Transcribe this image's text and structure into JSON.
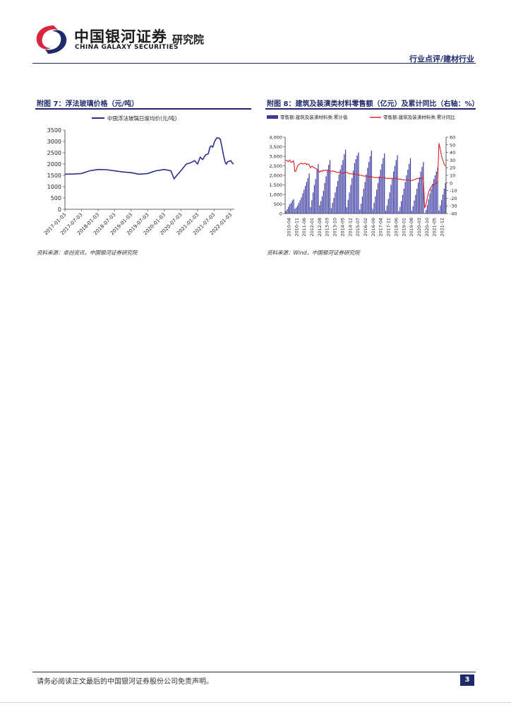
{
  "header": {
    "brand_cn": "中国银河证券",
    "brand_sub": "研究院",
    "brand_en": "CHINA GALAXY SECURITIES",
    "category": "行业点评/建材行业",
    "logo_colors": {
      "red": "#d7263d",
      "navy": "#1f2a6b"
    }
  },
  "figures": [
    {
      "title": "附图 7：浮法玻璃价格（元/吨）",
      "source": "资料来源：卓创资讯，中国银河证券研究院",
      "chart_data": {
        "type": "line",
        "series": [
          {
            "name": "中国浮法玻璃日度均价(元/吨)",
            "color": "#2e2e8f",
            "x": [
              "2017-01-03",
              "2017-04-01",
              "2017-07-03",
              "2017-10-01",
              "2018-01-03",
              "2018-04-01",
              "2018-07-03",
              "2018-10-01",
              "2019-01-03",
              "2019-04-01",
              "2019-07-03",
              "2019-10-01",
              "2020-01-03",
              "2020-03-15",
              "2020-04-20",
              "2020-05-20",
              "2020-07-03",
              "2020-09-01",
              "2020-10-15",
              "2020-12-01",
              "2021-01-03",
              "2021-02-01",
              "2021-03-01",
              "2021-04-01",
              "2021-05-01",
              "2021-05-20",
              "2021-06-01",
              "2021-06-20",
              "2021-07-10",
              "2021-08-01",
              "2021-08-20",
              "2021-09-10",
              "2021-10-01",
              "2021-10-15",
              "2021-11-01",
              "2021-11-15",
              "2021-12-01",
              "2022-01-03",
              "2022-01-20",
              "2022-02-05"
            ],
            "values": [
              1550,
              1560,
              1580,
              1700,
              1760,
              1750,
              1700,
              1650,
              1620,
              1550,
              1580,
              1700,
              1760,
              1700,
              1350,
              1500,
              1700,
              2000,
              2050,
              2150,
              2000,
              2300,
              2200,
              2400,
              2450,
              2750,
              2800,
              2750,
              3000,
              3150,
              3150,
              3100,
              2700,
              2400,
              2100,
              2000,
              2100,
              2150,
              2050,
              2000
            ]
          }
        ],
        "x_ticks": [
          "2017-01-03",
          "2017-07-03",
          "2018-01-03",
          "2018-07-03",
          "2019-01-03",
          "2019-07-03",
          "2020-01-03",
          "2020-07-03",
          "2021-01-03",
          "2021-07-03",
          "2022-01-03"
        ],
        "y_ticks": [
          "0",
          "500",
          "1000",
          "1500",
          "2000",
          "2500",
          "3000",
          "3500"
        ],
        "ylim": [
          0,
          3500
        ],
        "legend": "top",
        "grid": false
      }
    },
    {
      "title": "附图 8：建筑及装潢类材料零售额（亿元）及累计同比（右轴：%）",
      "source": "资料来源：Wind，中国银河证券研究院",
      "chart_data": {
        "type": "bar",
        "series": [
          {
            "name": "零售额:建筑及装潢材料类:累计值",
            "color": "#3a3aa0",
            "values": [
              120,
              220,
              350,
              480,
              560,
              680,
              750,
              250,
              320,
              420,
              560,
              700,
              850,
              1050,
              1250,
              1450,
              1650,
              1850,
              2100,
              340,
              700,
              1100,
              1500,
              1800,
              2300,
              2600,
              430,
              650,
              900,
              1200,
              1600,
              1950,
              2250,
              2550,
              2800,
              280,
              560,
              820,
              1100,
              1400,
              1700,
              2050,
              2300,
              2550,
              2800,
              3100,
              3350,
              330,
              720,
              1100,
              1500,
              1850,
              2250,
              2650,
              2850,
              3050,
              3200,
              210,
              520,
              900,
              1300,
              1650,
              2050,
              2400,
              2700,
              3000,
              3300,
              240,
              560,
              900,
              1250,
              1600,
              1950,
              2300,
              2600,
              2900,
              3150,
              150,
              420,
              760,
              1100,
              1500,
              1850,
              2200,
              2500,
              2800,
              3050,
              120,
              350,
              650,
              980,
              1300,
              1650,
              2000,
              2300,
              2600,
              2900,
              150,
              380,
              680,
              980,
              1300,
              1620,
              1900,
              2200,
              2450,
              2700,
              30,
              180,
              450,
              750,
              1050,
              1300,
              1560,
              1800,
              2000,
              2200,
              2400,
              160,
              420,
              700,
              1000,
              1300,
              1600
            ]
          },
          {
            "name": "零售额:建筑及装潢材料类:累计同比",
            "color": "#e02020",
            "axis": "right",
            "values": [
              30,
              29,
              28,
              30,
              27,
              28,
              29,
              15,
              16,
              22,
              24,
              25,
              26,
              25,
              25,
              26,
              24,
              25,
              24,
              20,
              22,
              21,
              20,
              19,
              18,
              17,
              14,
              16,
              15,
              17,
              16,
              17,
              17,
              16,
              15,
              15,
              16,
              15,
              15,
              14,
              14,
              14,
              13,
              13,
              13,
              13,
              14,
              14,
              13,
              12,
              12,
              12,
              12,
              11,
              11,
              11,
              11,
              10,
              10,
              10,
              9,
              9,
              9,
              9,
              8,
              8,
              8,
              8,
              7,
              7,
              7,
              7,
              7,
              7,
              7,
              7,
              7,
              6,
              6,
              6,
              6,
              6,
              6,
              6,
              6,
              6,
              6,
              5,
              5,
              5,
              4,
              4,
              4,
              4,
              4,
              4,
              3,
              3,
              4,
              4,
              5,
              6,
              6,
              6,
              6,
              6,
              7,
              -33,
              -28,
              -20,
              -12,
              -8,
              -5,
              -3,
              -2,
              -1,
              0,
              1,
              52,
              45,
              35,
              30,
              25,
              22
            ]
          }
        ],
        "x_ticks": [
          "2010-04",
          "2010-11",
          "2011-06",
          "2012-01",
          "2012-08",
          "2013-03",
          "2013-10",
          "2014-05",
          "2014-12",
          "2015-07",
          "2016-02",
          "2016-09",
          "2017-04",
          "2017-11",
          "2018-06",
          "2019-01",
          "2019-08",
          "2020-03",
          "2020-10",
          "2021-05",
          "2021-12"
        ],
        "y_ticks_left": [
          "0",
          "500",
          "1,000",
          "1,500",
          "2,000",
          "2,500",
          "3,000",
          "3,500",
          "4,000"
        ],
        "y_ticks_right": [
          "-40",
          "-30",
          "-20",
          "-10",
          "0",
          "10",
          "20",
          "30",
          "40",
          "50",
          "60"
        ],
        "ylim_left": [
          0,
          4000
        ],
        "ylim_right": [
          -40,
          60
        ],
        "legend": "top",
        "grid": false
      }
    }
  ],
  "footer": {
    "disclaimer": "请务必阅读正文最后的中国银河证券股份公司免责声明。",
    "page": "3"
  }
}
